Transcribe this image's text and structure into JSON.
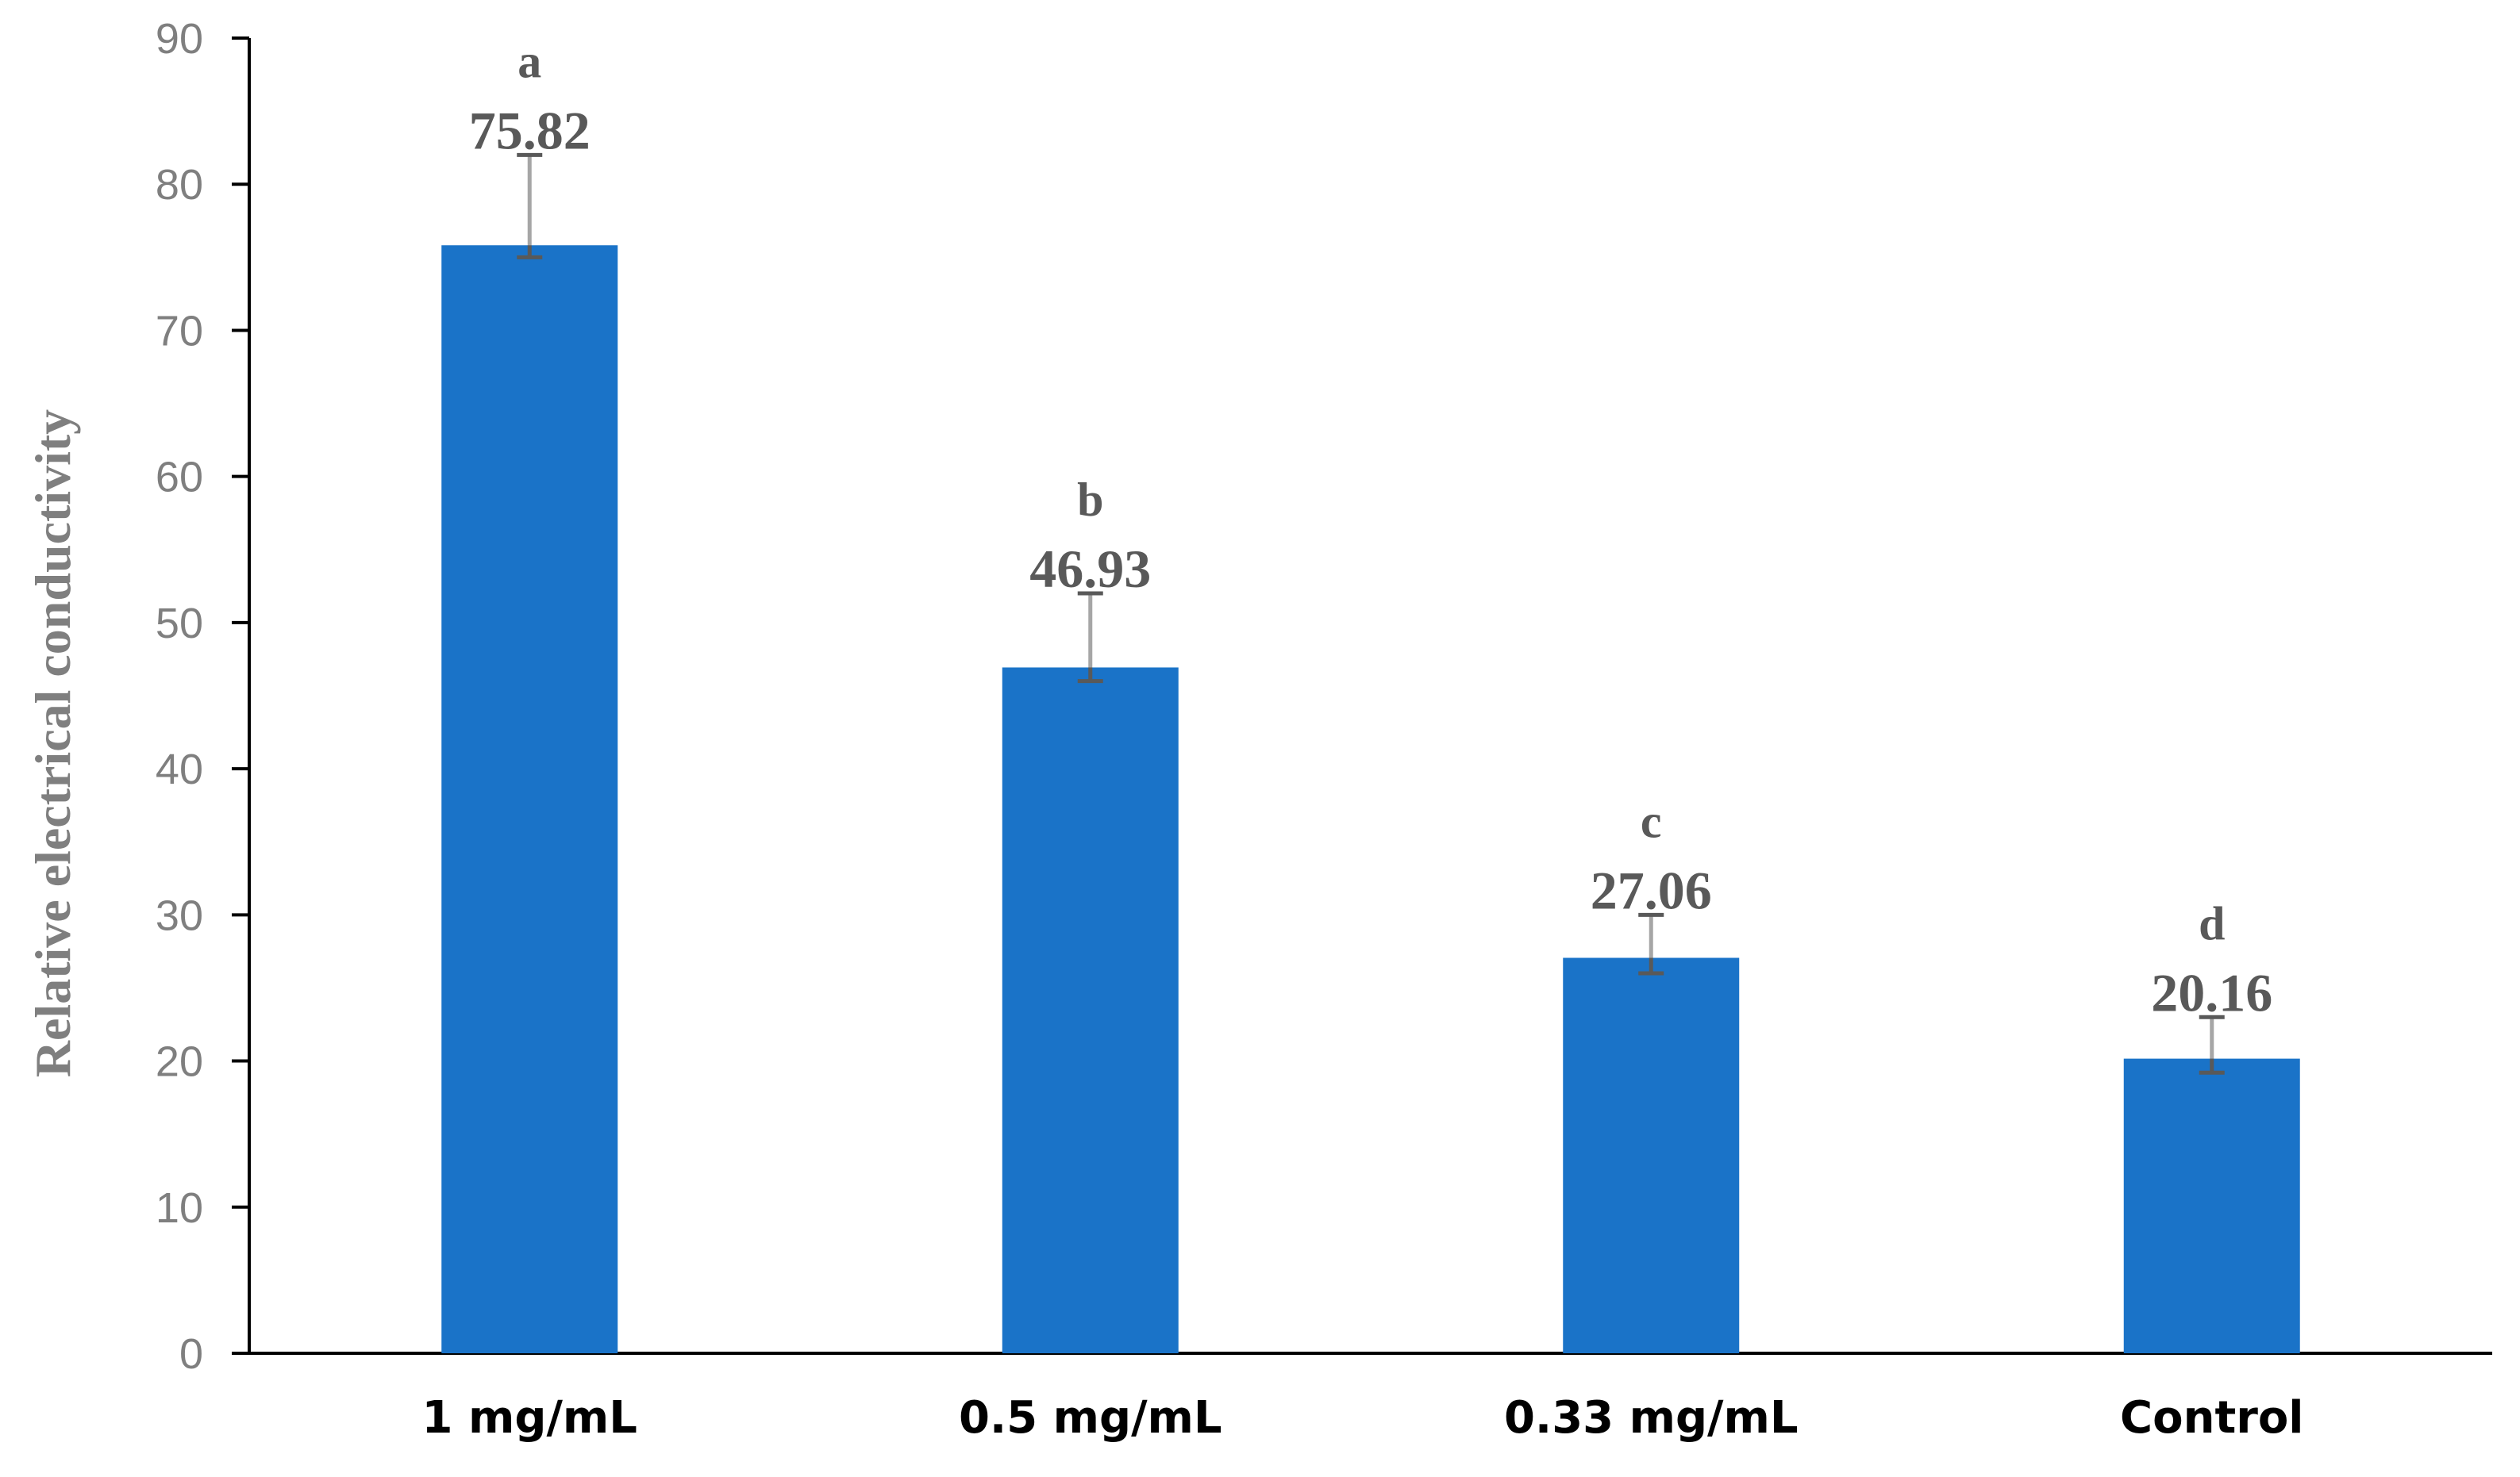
{
  "chart_data": {
    "type": "bar",
    "title": "",
    "xlabel": "",
    "ylabel": "Relative electrical conductivity",
    "ylim": [
      0,
      90
    ],
    "yticks": [
      0,
      10,
      20,
      30,
      40,
      50,
      60,
      70,
      80,
      90
    ],
    "grid": false,
    "categories": [
      "1 mg/mL",
      "0.5 mg/mL",
      "0.33 mg/mL",
      "Control"
    ],
    "values": [
      75.82,
      46.93,
      27.06,
      20.16
    ],
    "value_labels": [
      "75.82",
      "46.93",
      "27.06",
      "20.16"
    ],
    "error_upper": [
      82.0,
      52.0,
      30.0,
      23.0
    ],
    "error_lower": [
      75.0,
      46.0,
      26.0,
      19.2
    ],
    "significance_letters": [
      "a",
      "b",
      "c",
      "d"
    ],
    "colors": {
      "bar": "#1a73c8",
      "axis": "#000000",
      "tick_text": "#7f7f7f",
      "annotation_text": "#595959"
    }
  }
}
